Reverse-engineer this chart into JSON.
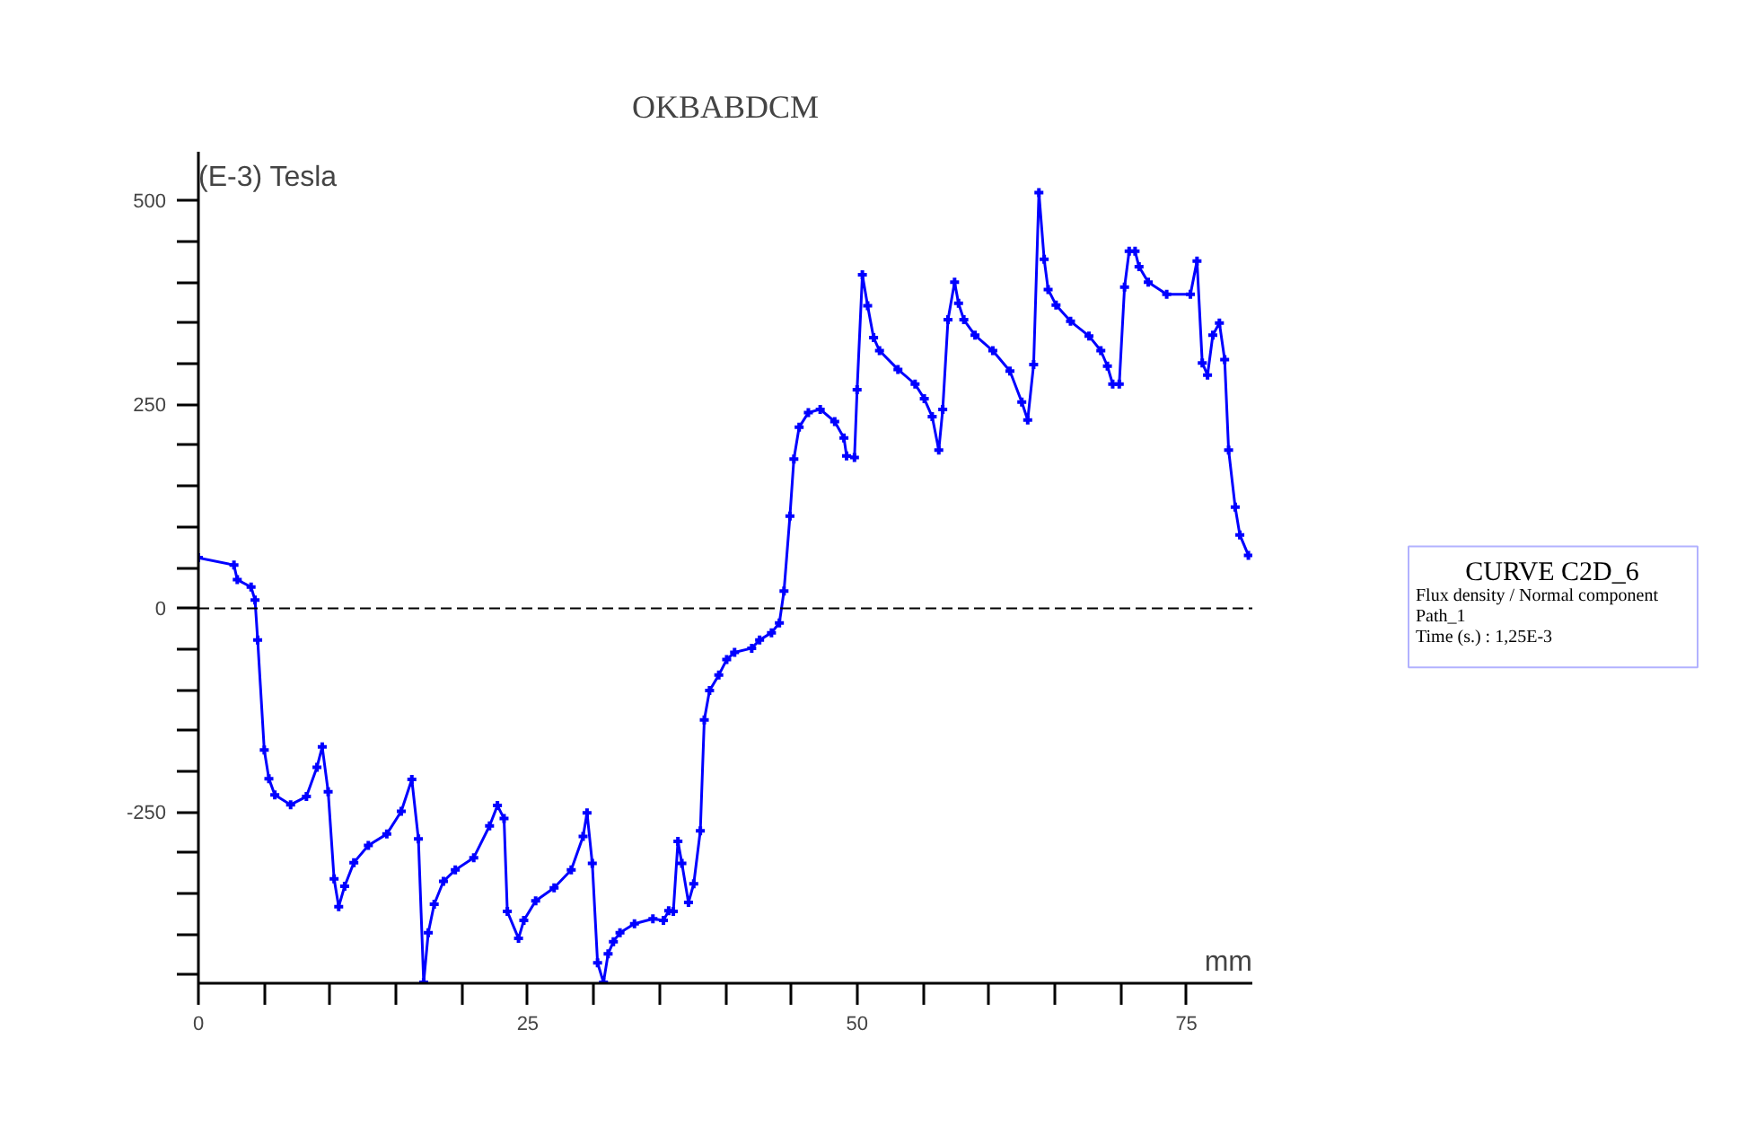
{
  "chart_data": {
    "type": "line",
    "title": "OKBABDCM",
    "xlabel": "mm",
    "ylabel": "(E-3) Tesla",
    "x": [
      0,
      2.7,
      2.95,
      4.0,
      4.3,
      4.5,
      5.0,
      5.35,
      5.8,
      7.0,
      8.2,
      9.0,
      9.4,
      9.85,
      10.3,
      10.65,
      11.1,
      11.8,
      12.9,
      14.3,
      15.4,
      16.2,
      16.7,
      17.1,
      17.45,
      17.9,
      18.6,
      19.5,
      20.9,
      22.1,
      22.7,
      23.2,
      23.45,
      24.3,
      24.7,
      25.6,
      27.0,
      28.3,
      29.2,
      29.5,
      29.9,
      30.3,
      30.75,
      31.1,
      31.5,
      32.0,
      33.1,
      34.5,
      35.3,
      35.7,
      36.05,
      36.4,
      36.7,
      37.2,
      37.6,
      38.1,
      38.4,
      38.8,
      39.5,
      40.1,
      40.7,
      42.0,
      42.6,
      43.5,
      44.1,
      44.45,
      44.9,
      45.2,
      45.6,
      46.3,
      47.2,
      48.3,
      49.0,
      49.2,
      49.8,
      50.0,
      50.4,
      50.8,
      51.25,
      51.7,
      53.1,
      54.4,
      55.1,
      55.7,
      56.2,
      56.5,
      56.9,
      57.4,
      57.7,
      58.1,
      58.95,
      60.3,
      61.6,
      62.5,
      62.95,
      63.4,
      63.8,
      64.2,
      64.5,
      65.1,
      66.2,
      67.6,
      68.5,
      69.0,
      69.4,
      69.9,
      70.3,
      70.65,
      71.1,
      71.4,
      72.1,
      73.5,
      75.3,
      75.8,
      76.2,
      76.6,
      77.0,
      77.5,
      77.9,
      78.2,
      78.7,
      79.05,
      79.7
    ],
    "series": [
      {
        "color": "#0000ff",
        "values": [
          62,
          53,
          35,
          26,
          10,
          -39,
          -174,
          -209,
          -229,
          -241,
          -231,
          -195,
          -170,
          -225,
          -332,
          -366,
          -341,
          -312,
          -291,
          -277,
          -249,
          -210,
          -283,
          -459,
          -398,
          -363,
          -335,
          -321,
          -306,
          -267,
          -242,
          -258,
          -372,
          -405,
          -383,
          -359,
          -343,
          -321,
          -280,
          -251,
          -313,
          -435,
          -459,
          -424,
          -409,
          -398,
          -387,
          -381,
          -383,
          -371,
          -372,
          -286,
          -313,
          -361,
          -338,
          -273,
          -137,
          -101,
          -82,
          -63,
          -54,
          -49,
          -39,
          -30,
          -18,
          21,
          113,
          183,
          222,
          240,
          244,
          229,
          209,
          187,
          185,
          268,
          409,
          371,
          332,
          316,
          293,
          275,
          257,
          235,
          194,
          244,
          354,
          400,
          374,
          354,
          335,
          316,
          291,
          253,
          231,
          299,
          510,
          428,
          391,
          372,
          352,
          334,
          316,
          297,
          275,
          275,
          394,
          438,
          438,
          419,
          400,
          385,
          385,
          426,
          301,
          286,
          335,
          350,
          305,
          194,
          124,
          90,
          65
        ]
      }
    ],
    "xlim": [
      0,
      80
    ],
    "ylim": [
      -460,
      560
    ],
    "xticks": [
      0,
      {
        "value": 5,
        "label": null
      },
      {
        "value": 10,
        "label": null
      },
      {
        "value": 15,
        "label": null
      },
      {
        "value": 20,
        "label": null
      },
      25,
      {
        "value": 30,
        "label": null
      },
      {
        "value": 35,
        "label": null
      },
      {
        "value": 40,
        "label": null
      },
      {
        "value": 45,
        "label": null
      },
      50,
      {
        "value": 55,
        "label": null
      },
      {
        "value": 60,
        "label": null
      },
      {
        "value": 65,
        "label": null
      },
      {
        "value": 70,
        "label": null
      },
      75
    ],
    "yticks": [
      {
        "value": -450,
        "label": null
      },
      {
        "value": -400,
        "label": null
      },
      {
        "value": -350,
        "label": null
      },
      {
        "value": -300,
        "label": null
      },
      -250,
      {
        "value": -200,
        "label": null
      },
      {
        "value": -150,
        "label": null
      },
      {
        "value": -100,
        "label": null
      },
      {
        "value": -50,
        "label": null
      },
      0,
      {
        "value": 50,
        "label": null
      },
      {
        "value": 100,
        "label": null
      },
      {
        "value": 150,
        "label": null
      },
      {
        "value": 200,
        "label": null
      },
      250,
      {
        "value": 300,
        "label": null
      },
      {
        "value": 350,
        "label": null
      },
      {
        "value": 400,
        "label": null
      },
      {
        "value": 450,
        "label": null
      },
      500
    ],
    "ref_lines": [
      {
        "axis": "y",
        "value": 0,
        "color": "#000000",
        "line_style": "dashed"
      }
    ],
    "annotations": [
      "CURVE C2D_6",
      "Flux density / Normal component",
      "Path_1",
      "Time (s.) : 1,25E-3"
    ],
    "grid": false,
    "marker": "cross",
    "line_style": "solid"
  }
}
